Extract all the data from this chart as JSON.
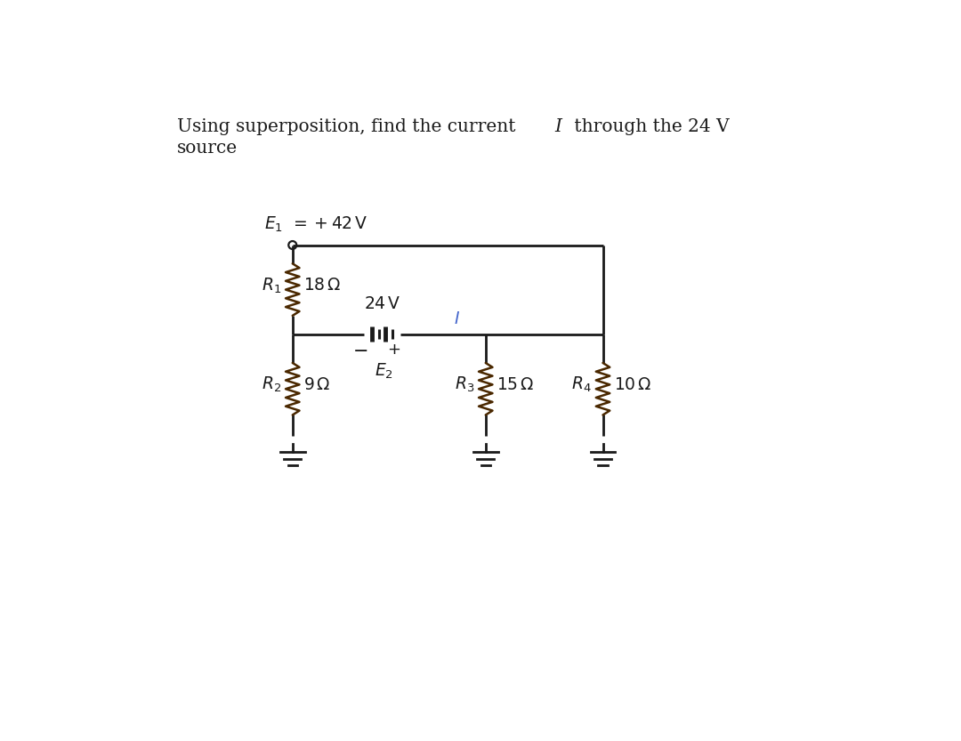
{
  "bg_color": "#ffffff",
  "wire_color": "#1a1a1a",
  "res_color": "#4a2800",
  "text_color": "#1a1a1a",
  "blue_color": "#4466cc",
  "title1": "Using superposition, find the current ",
  "title_I": "I",
  "title1_end": " through the 24 V",
  "title2": "source",
  "E1_text": "= + 42 V",
  "R1_val": "18 Ω",
  "R2_val": "9 Ω",
  "R3_val": "15 Ω",
  "R4_val": "10 Ω",
  "bat_volt": "24 V",
  "plus": "+",
  "minus": "−",
  "lw_wire": 2.0,
  "lw_res": 1.8,
  "lw_bat": 3.0
}
